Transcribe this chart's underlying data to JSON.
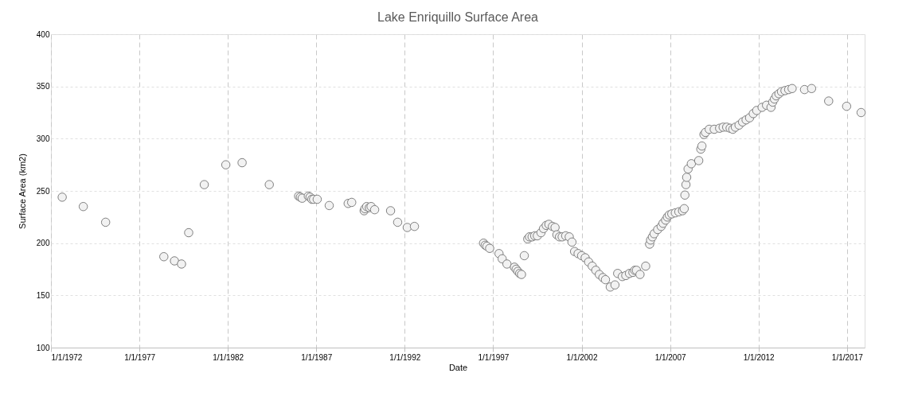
{
  "chart_data": {
    "type": "scatter",
    "title": "Lake Enriquillo Surface Area",
    "xlabel": "Date",
    "ylabel": "Surface Area (km2)",
    "xlim": [
      "1972-01-01",
      "2018-01-01"
    ],
    "ylim": [
      100,
      400
    ],
    "xticks": [
      {
        "value": "1972-01-01",
        "label": "1/1/1972"
      },
      {
        "value": "1977-01-01",
        "label": "1/1/1977"
      },
      {
        "value": "1982-01-01",
        "label": "1/1/1982"
      },
      {
        "value": "1987-01-01",
        "label": "1/1/1987"
      },
      {
        "value": "1992-01-01",
        "label": "1/1/1992"
      },
      {
        "value": "1997-01-01",
        "label": "1/1/1997"
      },
      {
        "value": "2002-01-01",
        "label": "1/1/2002"
      },
      {
        "value": "2007-01-01",
        "label": "1/1/2007"
      },
      {
        "value": "2012-01-01",
        "label": "1/1/2012"
      },
      {
        "value": "2017-01-01",
        "label": "1/1/2017"
      }
    ],
    "yticks": [
      100,
      150,
      200,
      250,
      300,
      350,
      400
    ],
    "grid": true,
    "marker": "circle",
    "series": [
      {
        "color": "#f2f2f2",
        "x": [
          "1972-08-20",
          "1973-10-30",
          "1975-02-03",
          "1978-05-20",
          "1978-12-25",
          "1979-05-20",
          "1979-10-15",
          "1980-09-01",
          "1981-11-20",
          "1982-10-22",
          "1984-05-05",
          "1986-01-01",
          "1986-02-06",
          "1986-03-15",
          "1986-07-20",
          "1986-08-25",
          "1986-10-01",
          "1986-11-06",
          "1987-01-20",
          "1987-09-25",
          "1988-10-20",
          "1989-01-01",
          "1989-09-15",
          "1989-10-01",
          "1989-11-06",
          "1990-01-01",
          "1990-02-06",
          "1990-04-20",
          "1991-03-15",
          "1991-08-08",
          "1992-02-22",
          "1992-07-20",
          "1996-06-15",
          "1996-07-20",
          "1996-08-25",
          "1996-10-20",
          "1997-05-01",
          "1997-07-05",
          "1997-10-12",
          "1998-03-15",
          "1998-04-20",
          "1998-05-25",
          "1998-07-01",
          "1998-08-08",
          "1998-10-05",
          "1998-12-15",
          "1999-01-20",
          "1999-03-15",
          "1999-05-08",
          "1999-07-01",
          "1999-09-15",
          "1999-11-06",
          "2000-01-01",
          "2000-02-25",
          "2000-05-08",
          "2000-07-01",
          "2000-08-08",
          "2000-10-01",
          "2000-11-25",
          "2001-02-06",
          "2001-04-20",
          "2001-06-15",
          "2001-08-08",
          "2001-10-20",
          "2002-01-01",
          "2002-03-15",
          "2002-05-25",
          "2002-08-08",
          "2002-10-20",
          "2003-01-01",
          "2003-03-15",
          "2003-05-08",
          "2003-08-15",
          "2003-11-20",
          "2004-01-15",
          "2004-04-20",
          "2004-07-01",
          "2004-09-15",
          "2004-11-25",
          "2005-01-01",
          "2005-02-06",
          "2005-04-20",
          "2005-08-15",
          "2005-11-05",
          "2005-11-25",
          "2006-01-01",
          "2006-02-06",
          "2006-04-20",
          "2006-07-01",
          "2006-08-08",
          "2006-10-01",
          "2006-11-06",
          "2006-12-15",
          "2007-02-06",
          "2007-04-20",
          "2007-07-01",
          "2007-09-15",
          "2007-10-20",
          "2007-11-03",
          "2007-11-25",
          "2007-12-10",
          "2008-01-08",
          "2008-03-15",
          "2008-08-15",
          "2008-09-27",
          "2008-10-20",
          "2008-12-01",
          "2009-01-01",
          "2009-03-20",
          "2009-07-01",
          "2009-10-20",
          "2010-01-01",
          "2010-03-15",
          "2010-05-25",
          "2010-07-20",
          "2010-09-10",
          "2010-11-25",
          "2011-02-06",
          "2011-04-20",
          "2011-07-01",
          "2011-09-15",
          "2011-11-25",
          "2012-03-15",
          "2012-06-15",
          "2012-09-15",
          "2012-10-20",
          "2012-11-25",
          "2013-01-01",
          "2013-02-25",
          "2013-04-20",
          "2013-07-01",
          "2013-09-15",
          "2013-11-25",
          "2014-08-08",
          "2015-01-01",
          "2015-12-20",
          "2016-12-25",
          "2017-10-20"
        ],
        "values": [
          244,
          235,
          220,
          187,
          183,
          180,
          210,
          256,
          275,
          277,
          256,
          245,
          244,
          243,
          245,
          244,
          242,
          242,
          242,
          236,
          238,
          239,
          231,
          233,
          235,
          234,
          235,
          232,
          231,
          220,
          215,
          216,
          200,
          198,
          197,
          195,
          190,
          185,
          180,
          177,
          175,
          173,
          171,
          170,
          188,
          204,
          206,
          206,
          207,
          207,
          210,
          214,
          217,
          218,
          216,
          215,
          208,
          206,
          206,
          207,
          206,
          201,
          192,
          190,
          188,
          186,
          182,
          178,
          174,
          170,
          167,
          165,
          158,
          160,
          171,
          168,
          169,
          171,
          172,
          174,
          174,
          170,
          178,
          199,
          203,
          206,
          209,
          213,
          216,
          219,
          222,
          225,
          227,
          228,
          229,
          230,
          231,
          233,
          246,
          256,
          263,
          271,
          276,
          279,
          290,
          293,
          304,
          306,
          309,
          309,
          310,
          311,
          311,
          310,
          309,
          311,
          313,
          316,
          318,
          320,
          324,
          327,
          330,
          332,
          330,
          335,
          338,
          341,
          343,
          345,
          346,
          347,
          348,
          347,
          348,
          336,
          331,
          325
        ]
      }
    ]
  }
}
